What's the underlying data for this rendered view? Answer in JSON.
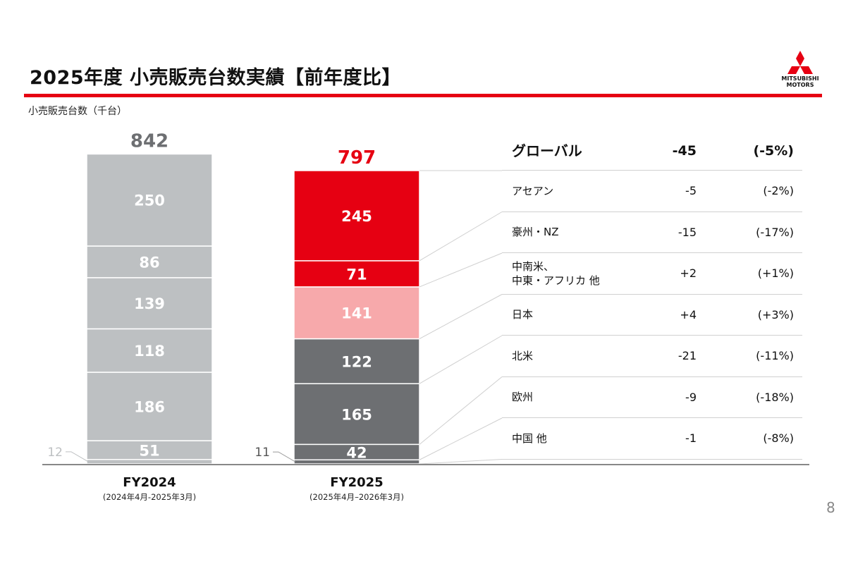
{
  "page": {
    "title": "2025年度 小売販売台数実績【前年度比】",
    "unit_label": "小売販売台数（千台）",
    "page_number": "8",
    "logo": {
      "line1": "MITSUBISHI",
      "line2": "MOTORS",
      "icon": "three-diamonds-icon",
      "color": "#e60012"
    }
  },
  "chart_data": {
    "type": "bar",
    "stacked": true,
    "categories": [
      "FY2024",
      "FY2025"
    ],
    "category_sublabels": [
      "(2024年4月-2025年3月)",
      "(2025年4月–2026年3月)"
    ],
    "totals": [
      842,
      797
    ],
    "total_colors": [
      "#6d6f72",
      "#e60012"
    ],
    "series": [
      {
        "name": "中国 他",
        "values": [
          12,
          11
        ],
        "colors": [
          "#bdc0c2",
          "#6d6f72"
        ]
      },
      {
        "name": "欧州",
        "values": [
          51,
          42
        ],
        "colors": [
          "#bdc0c2",
          "#6d6f72"
        ]
      },
      {
        "name": "北米",
        "values": [
          186,
          165
        ],
        "colors": [
          "#bdc0c2",
          "#6d6f72"
        ]
      },
      {
        "name": "日本",
        "values": [
          118,
          122
        ],
        "colors": [
          "#bdc0c2",
          "#6d6f72"
        ]
      },
      {
        "name": "中南米、中東・アフリカ 他",
        "values": [
          139,
          141
        ],
        "colors": [
          "#bdc0c2",
          "#f7a9ab"
        ]
      },
      {
        "name": "豪州・NZ",
        "values": [
          86,
          71
        ],
        "colors": [
          "#bdc0c2",
          "#e60012"
        ]
      },
      {
        "name": "アセアン",
        "values": [
          250,
          245
        ],
        "colors": [
          "#bdc0c2",
          "#e60012"
        ]
      }
    ],
    "outside_labels": [
      "12",
      "11"
    ]
  },
  "table": {
    "header": {
      "name": "グローバル",
      "diff": "-45",
      "pct": "(-5%)"
    },
    "rows": [
      {
        "name": "アセアン",
        "diff": "-5",
        "pct": "(-2%)"
      },
      {
        "name": "豪州・NZ",
        "diff": "-15",
        "pct": "(-17%)"
      },
      {
        "name": "中南米、",
        "name2": "中東・アフリカ 他",
        "diff": "+2",
        "pct": "(+1%)"
      },
      {
        "name": "日本",
        "diff": "+4",
        "pct": "(+3%)"
      },
      {
        "name": "北米",
        "diff": "-21",
        "pct": "(-11%)"
      },
      {
        "name": "欧州",
        "diff": "-9",
        "pct": "(-18%)"
      },
      {
        "name": "中国 他",
        "diff": "-1",
        "pct": "(-8%)"
      }
    ]
  }
}
